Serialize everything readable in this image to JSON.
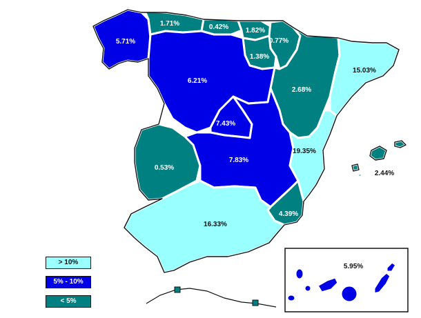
{
  "colors": {
    "high": "#99ffff",
    "mid": "#0000e6",
    "low": "#008080",
    "label_light": "#ffffff",
    "label_dark": "#111111"
  },
  "regions": {
    "galicia": "5.71%",
    "asturias": "1.71%",
    "cantabria": "0.42%",
    "pais_vasco": "1.82%",
    "navarra": "0.77%",
    "la_rioja": "1.38%",
    "castilla_leon": "6.21%",
    "aragon": "2.68%",
    "cataluna": "15.03%",
    "madrid": "7.43%",
    "castilla_la_mancha": "7.83%",
    "extremadura": "0.53%",
    "valencia": "19.35%",
    "murcia": "4.39%",
    "andalucia": "16.33%",
    "baleares": "2.44%",
    "canarias": "5.95%"
  },
  "legend": [
    {
      "label": "> 10%",
      "color": "#99ffff"
    },
    {
      "label": "5% - 10%",
      "color": "#0000e6"
    },
    {
      "label": "< 5%",
      "color": "#008080"
    }
  ]
}
